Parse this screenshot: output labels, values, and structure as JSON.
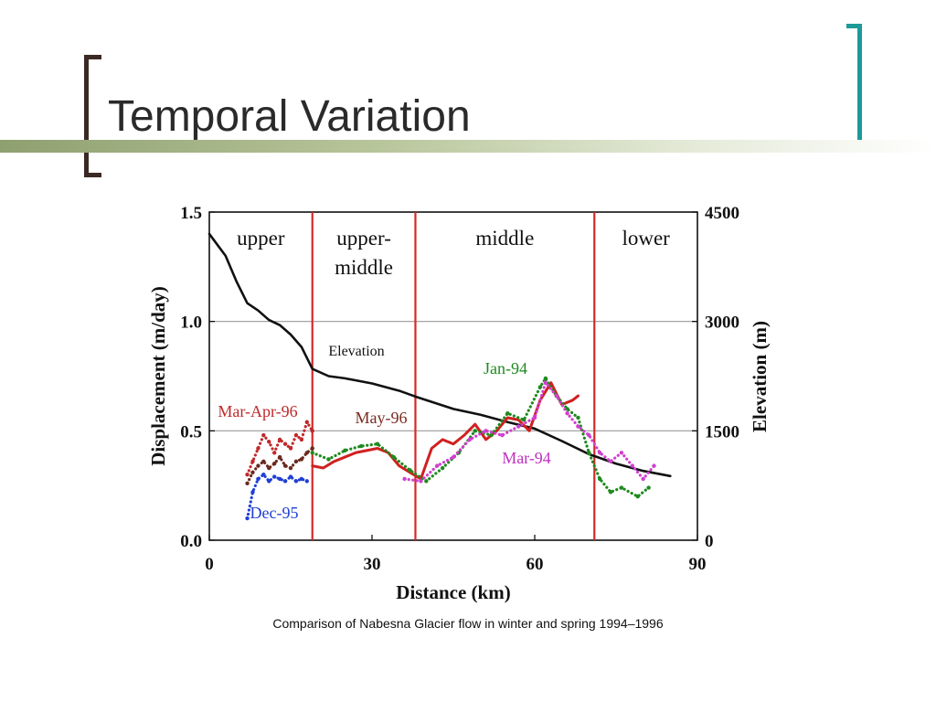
{
  "slide": {
    "title": "Temporal Variation",
    "caption": "Comparison of Nabesna Glacier flow in winter and spring 1994–1996"
  },
  "colors": {
    "bracket_left": "#3a2a24",
    "bracket_right": "#1d9a98",
    "zone_divider": "#d62828",
    "gridline": "#9a9a9a"
  },
  "chart_data": {
    "type": "line",
    "xlabel": "Distance (km)",
    "ylabel": "Displacement (m/day)",
    "y2label": "Elevation (m)",
    "xlim": [
      0,
      90
    ],
    "ylim": [
      0,
      1.5
    ],
    "y2lim": [
      0,
      4500
    ],
    "x_ticks": [
      "0",
      "30",
      "60",
      "90"
    ],
    "y_ticks": [
      "0.0",
      "0.5",
      "1.0",
      "1.5"
    ],
    "y2_ticks": [
      "0",
      "1500",
      "3000",
      "4500"
    ],
    "gridlines_y": [
      0.5,
      1.0
    ],
    "zone_boundaries_km": [
      19,
      38,
      71
    ],
    "zones": [
      {
        "label": "upper",
        "x_from": 0,
        "x_to": 19
      },
      {
        "label": "upper-\nmiddle",
        "x_from": 19,
        "x_to": 38
      },
      {
        "label": "middle",
        "x_from": 38,
        "x_to": 71
      },
      {
        "label": "lower",
        "x_from": 71,
        "x_to": 90
      }
    ],
    "series": [
      {
        "name": "Elevation",
        "axis": "right",
        "color": "#111111",
        "style": "solid",
        "x": [
          0,
          3,
          5,
          7,
          9,
          11,
          13,
          15,
          17,
          19,
          22,
          25,
          30,
          35,
          38,
          45,
          50,
          55,
          60,
          65,
          70,
          75,
          80,
          85
        ],
        "y": [
          4200,
          3900,
          3550,
          3250,
          3150,
          3020,
          2950,
          2820,
          2650,
          2350,
          2250,
          2220,
          2150,
          2050,
          1970,
          1800,
          1720,
          1620,
          1530,
          1360,
          1180,
          1050,
          950,
          880
        ]
      },
      {
        "name": "Mar-Apr-96",
        "axis": "left",
        "color": "#c0282a",
        "style": "dotted",
        "x": [
          7,
          8,
          9,
          10,
          11,
          12,
          13,
          14,
          15,
          16,
          17,
          18,
          19
        ],
        "y": [
          0.3,
          0.36,
          0.42,
          0.48,
          0.45,
          0.4,
          0.46,
          0.44,
          0.42,
          0.48,
          0.46,
          0.54,
          0.5
        ]
      },
      {
        "name": "Dec-95",
        "axis": "left",
        "color": "#1f3fd6",
        "style": "dotted",
        "x": [
          7,
          8,
          9,
          10,
          11,
          12,
          13,
          14,
          15,
          16,
          17,
          18
        ],
        "y": [
          0.1,
          0.22,
          0.28,
          0.3,
          0.27,
          0.29,
          0.28,
          0.27,
          0.29,
          0.27,
          0.28,
          0.27
        ]
      },
      {
        "name": "(unlabeled brown)",
        "axis": "left",
        "color": "#6a2a1e",
        "style": "dotted",
        "x": [
          7,
          8,
          9,
          10,
          11,
          12,
          13,
          14,
          15,
          16,
          17,
          18,
          19
        ],
        "y": [
          0.26,
          0.31,
          0.34,
          0.36,
          0.33,
          0.35,
          0.38,
          0.34,
          0.33,
          0.36,
          0.37,
          0.4,
          0.42
        ]
      },
      {
        "name": "May-96",
        "axis": "left",
        "color": "#d02020",
        "style": "solid",
        "x": [
          19,
          21,
          23,
          25,
          27,
          29,
          31,
          33,
          35,
          37,
          39,
          41,
          43,
          45,
          47,
          49,
          51,
          53,
          55,
          57,
          59,
          61,
          63,
          65,
          67,
          68
        ],
        "y": [
          0.34,
          0.33,
          0.36,
          0.38,
          0.4,
          0.41,
          0.42,
          0.4,
          0.34,
          0.31,
          0.28,
          0.42,
          0.46,
          0.44,
          0.48,
          0.53,
          0.46,
          0.5,
          0.56,
          0.55,
          0.5,
          0.64,
          0.72,
          0.62,
          0.64,
          0.66
        ]
      },
      {
        "name": "Jan-94",
        "axis": "left",
        "color": "#1e8a1e",
        "style": "dotted",
        "x": [
          19,
          22,
          25,
          28,
          31,
          34,
          37,
          40,
          43,
          46,
          49,
          52,
          55,
          58,
          61,
          62,
          64,
          66,
          68,
          70,
          72,
          74,
          76,
          79,
          81
        ],
        "y": [
          0.4,
          0.37,
          0.41,
          0.43,
          0.44,
          0.38,
          0.32,
          0.27,
          0.33,
          0.4,
          0.5,
          0.48,
          0.58,
          0.55,
          0.7,
          0.74,
          0.66,
          0.6,
          0.56,
          0.4,
          0.28,
          0.22,
          0.24,
          0.2,
          0.24
        ]
      },
      {
        "name": "Mar-94",
        "axis": "left",
        "color": "#d040d0",
        "style": "dotted",
        "x": [
          36,
          39,
          42,
          45,
          48,
          51,
          54,
          57,
          60,
          62,
          64,
          66,
          68,
          70,
          72,
          74,
          76,
          78,
          80,
          82
        ],
        "y": [
          0.28,
          0.27,
          0.34,
          0.38,
          0.46,
          0.5,
          0.48,
          0.52,
          0.56,
          0.72,
          0.66,
          0.58,
          0.52,
          0.48,
          0.4,
          0.36,
          0.4,
          0.34,
          0.28,
          0.34
        ]
      }
    ],
    "annotations": [
      "Elevation",
      "Jan-94",
      "Mar-Apr-96",
      "May-96",
      "Mar-94",
      "Dec-95"
    ]
  }
}
